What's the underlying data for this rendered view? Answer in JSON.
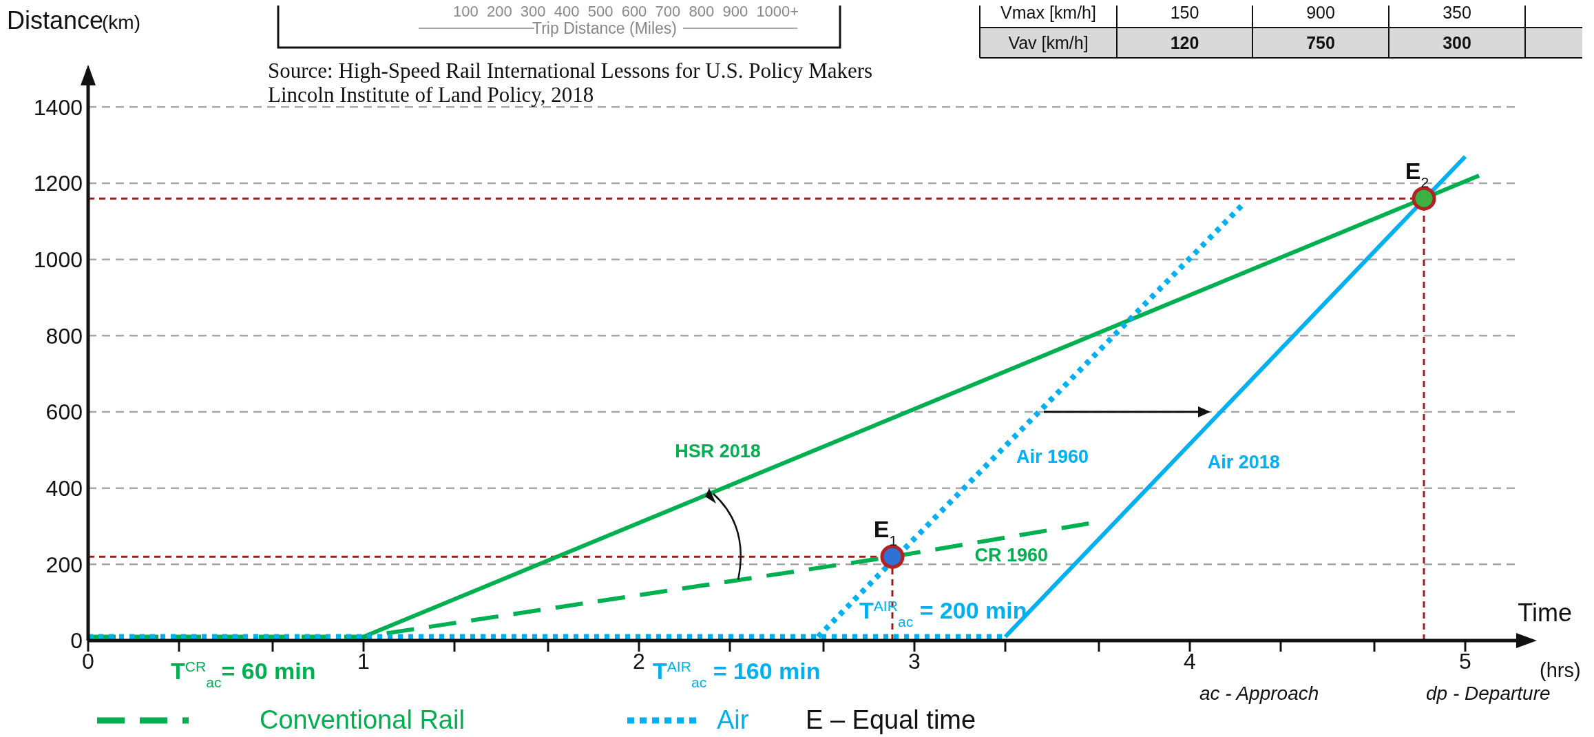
{
  "chart_data": {
    "type": "line",
    "xlabel": "Time",
    "ylabel": "Distance",
    "xlim": [
      0,
      5.2
    ],
    "ylim": [
      0,
      1500
    ],
    "xticks": [
      0,
      {
        "value": 0.33,
        "label": null
      },
      {
        "value": 0.67,
        "label": null
      },
      1,
      {
        "value": 1.33,
        "label": null
      },
      {
        "value": 1.67,
        "label": null
      },
      2,
      {
        "value": 2.33,
        "label": null
      },
      {
        "value": 2.67,
        "label": null
      },
      3,
      {
        "value": 3.33,
        "label": null
      },
      {
        "value": 3.67,
        "label": null
      },
      4,
      {
        "value": 4.33,
        "label": null
      },
      {
        "value": 4.67,
        "label": null
      },
      5
    ],
    "yticks": [
      0,
      200,
      400,
      600,
      800,
      1000,
      1200,
      1400
    ],
    "grid": "y",
    "marker": "none",
    "series": [
      {
        "name": "CR 1960",
        "color": "#00b050",
        "line_style": "dashed",
        "x": [
          0,
          1,
          2.92,
          3.64
        ],
        "values": [
          10,
          10,
          220,
          308
        ]
      },
      {
        "name": "HSR 2018",
        "color": "#00b050",
        "line_style": "solid",
        "x": [
          1,
          5.05
        ],
        "values": [
          10,
          1220
        ]
      },
      {
        "name": "Air 1960",
        "color": "#00b0f0",
        "line_style": "dotted",
        "x": [
          2.65,
          4.2
        ],
        "values": [
          10,
          1150
        ]
      },
      {
        "name": "Air 2018",
        "color": "#00b0f0",
        "line_style": "solid",
        "x": [
          3.33,
          5.0
        ],
        "values": [
          10,
          1270
        ]
      },
      {
        "color": "#00b0f0",
        "line_style": "dotted",
        "x": [
          0,
          3.33
        ],
        "values": [
          10,
          10
        ]
      },
      {
        "type": "scatter",
        "marker": "circle",
        "color": "#b22222",
        "colors": [
          "#2f6fd6",
          "#3cb043"
        ],
        "x": [
          2.92,
          4.85
        ],
        "values": [
          220,
          1160
        ]
      }
    ],
    "ref_lines": [
      {
        "axis": "y",
        "value": 1160,
        "color": "#a01c1c",
        "line_style": "dashed"
      },
      {
        "axis": "y",
        "value": 220,
        "color": "#a01c1c",
        "line_style": "dashed"
      },
      {
        "axis": "x",
        "value": 2.92,
        "color": "#a01c1c",
        "line_style": "dashed"
      },
      {
        "axis": "x",
        "value": 4.85,
        "color": "#a01c1c",
        "line_style": "dashed"
      }
    ],
    "annotations": [
      "Source: High-Speed Rail International Lessons for U.S. Policy Makers",
      "Lincoln Institute of Land Policy, 2018",
      "T$^{CR}$$_{ac}$= 60 min",
      "T$^{AIR}$$_{ac}$ = 160 min",
      "T$^{AIR}$$_{ac}$ = 200 min",
      "(km)",
      "(hrs)",
      "Conventional Rail",
      "Air",
      "E – Equal time",
      "ac - Approach",
      "dp - Departure",
      "100  200  300  400  500  600  700  800  900  1000+",
      "Trip Distance (Miles)",
      "Vmax [km/h]",
      "150",
      "900",
      "350",
      "Vav [km/h]",
      "120",
      "750",
      "300",
      {
        "text": "E$_{1}$",
        "x": 2.92,
        "y": 220
      },
      {
        "text": "E$_{2}$",
        "x": 4.85,
        "y": 1160
      }
    ]
  }
}
